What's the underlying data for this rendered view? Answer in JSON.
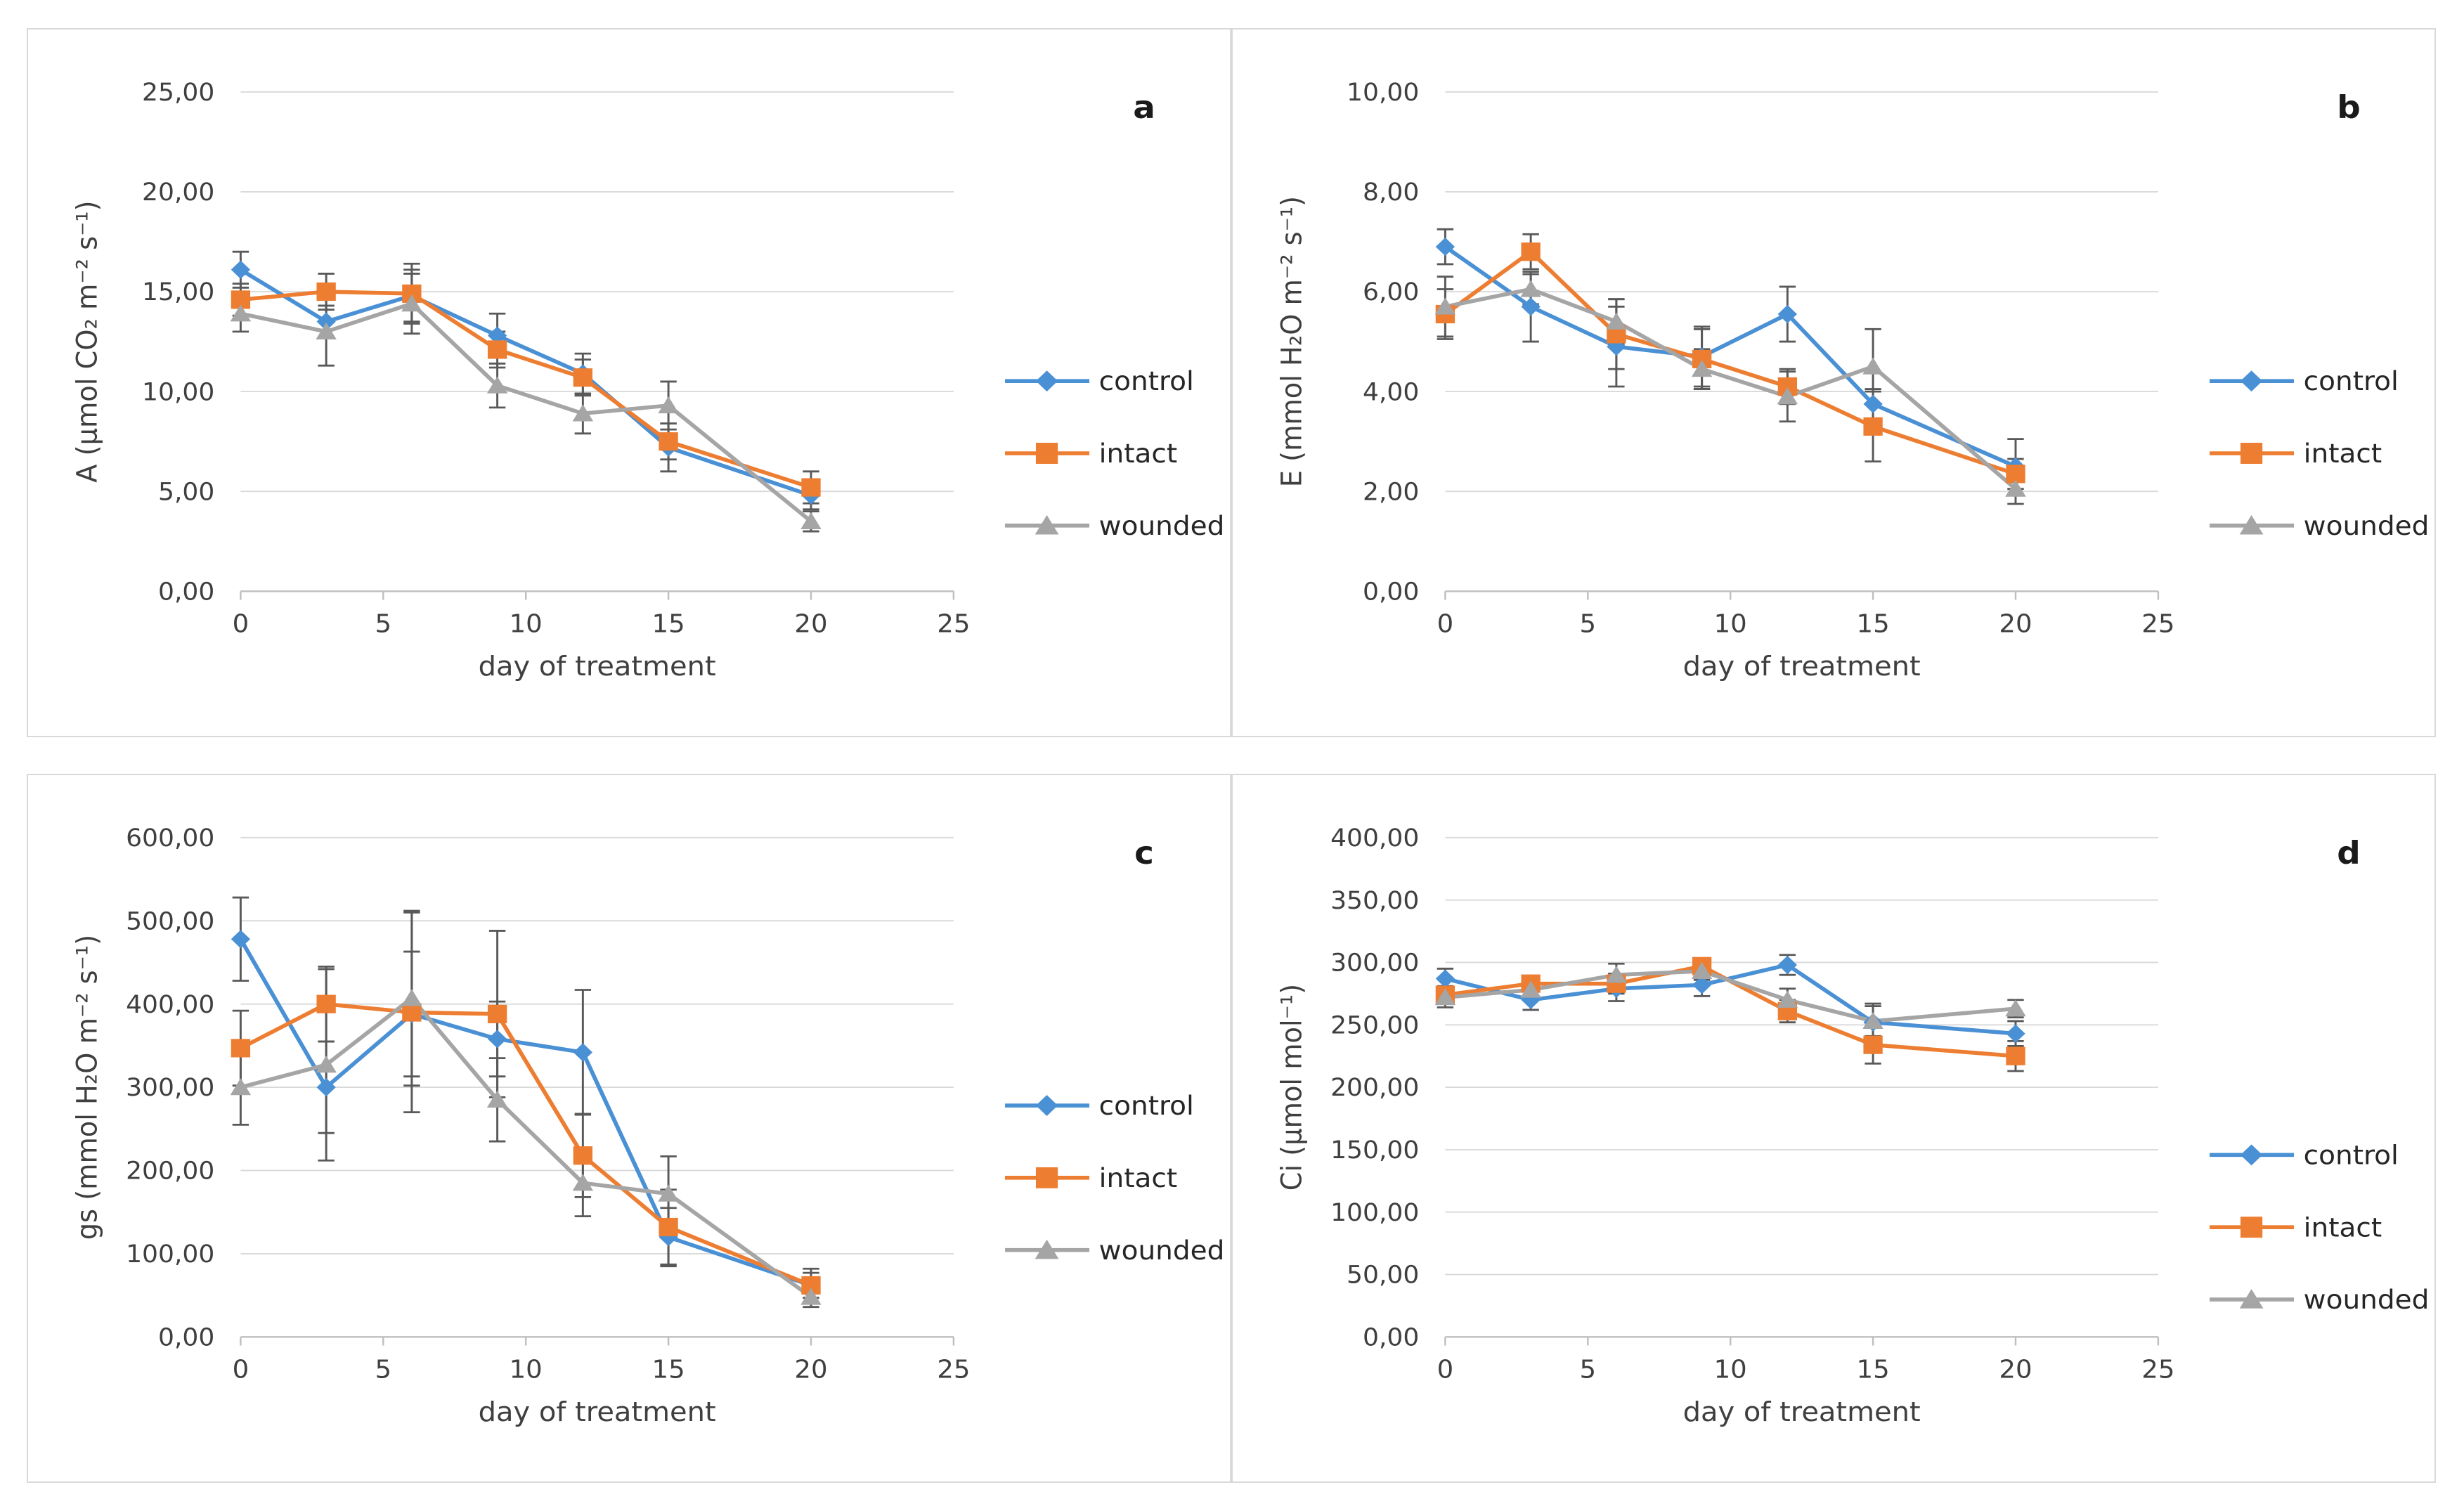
{
  "figure": {
    "background": "#ffffff",
    "panel_border_color": "#d9d9d9",
    "gridline_color": "#d9d9d9",
    "axis_line_color": "#bfbfbf",
    "error_bar_color": "#595959",
    "text_color": "#3f3f3f",
    "panel_letter_color": "#1a1a1a",
    "decimal_separator": ",",
    "x_label": "day of treatment",
    "x_range": [
      0,
      25
    ],
    "x_ticks": [
      0,
      5,
      10,
      15,
      20,
      25
    ],
    "legend": [
      {
        "name": "control",
        "color": "#4a90d5",
        "marker": "diamond"
      },
      {
        "name": "intact",
        "color": "#ed7d31",
        "marker": "square"
      },
      {
        "name": "wounded",
        "color": "#a5a5a5",
        "marker": "triangle"
      }
    ]
  },
  "chart_data": [
    {
      "type": "line",
      "panel_label": "a",
      "ylabel": "A (µmol CO₂ m⁻² s⁻¹)",
      "xlabel": "day of treatment",
      "ylim": [
        0,
        25
      ],
      "ytick_step": 5,
      "grid": true,
      "legend_position": "right",
      "legend_center_frac": 0.6,
      "x": [
        0,
        3,
        6,
        9,
        12,
        15,
        20
      ],
      "series": [
        {
          "name": "control",
          "values": [
            16.1,
            13.5,
            14.8,
            12.8,
            10.9,
            7.2,
            4.8
          ],
          "errors": [
            0.9,
            0.8,
            1.3,
            1.1,
            1.0,
            1.2,
            0.7
          ]
        },
        {
          "name": "intact",
          "values": [
            14.6,
            15.0,
            14.9,
            12.1,
            10.7,
            7.5,
            5.2
          ],
          "errors": [
            0.8,
            0.9,
            1.5,
            0.9,
            0.9,
            0.9,
            0.8
          ]
        },
        {
          "name": "wounded",
          "values": [
            13.9,
            13.0,
            14.4,
            10.3,
            8.9,
            9.3,
            3.5
          ],
          "errors": [
            0.9,
            1.7,
            1.5,
            1.1,
            1.0,
            1.2,
            0.5
          ]
        }
      ]
    },
    {
      "type": "line",
      "panel_label": "b",
      "ylabel": "E (mmol H₂O m⁻² s⁻¹)",
      "xlabel": "day of treatment",
      "ylim": [
        0,
        10
      ],
      "ytick_step": 2,
      "grid": true,
      "legend_position": "right",
      "legend_center_frac": 0.6,
      "x": [
        0,
        3,
        6,
        9,
        12,
        15,
        20
      ],
      "series": [
        {
          "name": "control",
          "values": [
            6.9,
            5.7,
            4.9,
            4.7,
            5.55,
            3.75,
            2.5
          ],
          "errors": [
            0.35,
            0.7,
            0.8,
            0.6,
            0.55,
            0.3,
            0.55
          ]
        },
        {
          "name": "intact",
          "values": [
            5.55,
            6.8,
            5.15,
            4.65,
            4.1,
            3.3,
            2.35
          ],
          "errors": [
            0.5,
            0.35,
            0.7,
            0.6,
            0.35,
            0.7,
            0.3
          ]
        },
        {
          "name": "wounded",
          "values": [
            5.7,
            6.05,
            5.4,
            4.45,
            3.9,
            4.5,
            2.05
          ],
          "errors": [
            0.6,
            0.3,
            0.45,
            0.4,
            0.5,
            0.75,
            0.3
          ]
        }
      ]
    },
    {
      "type": "line",
      "panel_label": "c",
      "ylabel": "gs (mmol H₂O m⁻² s⁻¹)",
      "xlabel": "day of treatment",
      "ylim": [
        0,
        600
      ],
      "ytick_step": 100,
      "grid": true,
      "legend_position": "right",
      "legend_center_frac": 0.57,
      "x": [
        0,
        3,
        6,
        9,
        12,
        15,
        20
      ],
      "series": [
        {
          "name": "control",
          "values": [
            478,
            300,
            388,
            358,
            342,
            120,
            62
          ],
          "errors": [
            50,
            55,
            75,
            45,
            75,
            35,
            20
          ]
        },
        {
          "name": "intact",
          "values": [
            347,
            400,
            390,
            388,
            218,
            132,
            62
          ],
          "errors": [
            45,
            45,
            120,
            100,
            50,
            45,
            15
          ]
        },
        {
          "name": "wounded",
          "values": [
            300,
            327,
            407,
            285,
            185,
            172,
            48
          ],
          "errors": [
            45,
            115,
            105,
            50,
            40,
            45,
            12
          ]
        }
      ]
    },
    {
      "type": "line",
      "panel_label": "d",
      "ylabel": "Ci (µmol mol⁻¹)",
      "xlabel": "day of treatment",
      "ylim": [
        0,
        400
      ],
      "ytick_step": 50,
      "grid": true,
      "legend_position": "right",
      "legend_center_frac": 0.64,
      "x": [
        0,
        3,
        6,
        9,
        12,
        15,
        20
      ],
      "series": [
        {
          "name": "control",
          "values": [
            287,
            270,
            279,
            282,
            298,
            252,
            243
          ],
          "errors": [
            8,
            8,
            10,
            9,
            8,
            15,
            10
          ]
        },
        {
          "name": "intact",
          "values": [
            274,
            283,
            283,
            297,
            261,
            234,
            225
          ],
          "errors": [
            7,
            6,
            8,
            6,
            9,
            15,
            12
          ]
        },
        {
          "name": "wounded",
          "values": [
            272,
            278,
            290,
            293,
            270,
            253,
            263
          ],
          "errors": [
            8,
            7,
            9,
            7,
            9,
            12,
            7
          ]
        }
      ]
    }
  ]
}
